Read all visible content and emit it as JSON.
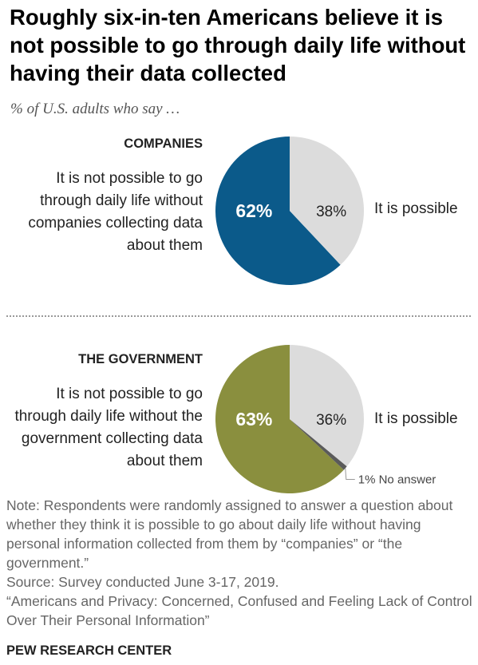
{
  "title": "Roughly six-in-ten Americans believe it is not possible to go through daily life without having their data collected",
  "subtitle": "% of U.S. adults who say …",
  "colors": {
    "companies_accent": "#0b5a8a",
    "government_accent": "#8a8f3e",
    "possible": "#dcdcdc",
    "no_answer": "#5a5a5a"
  },
  "chart_data": [
    {
      "type": "pie",
      "title": "COMPANIES",
      "slices": [
        {
          "label": "It is not possible to go through daily life without companies collecting data about them",
          "value": 62,
          "display": "62%"
        },
        {
          "label": "It is possible",
          "value": 38,
          "display": "38%"
        }
      ]
    },
    {
      "type": "pie",
      "title": "THE GOVERNMENT",
      "slices": [
        {
          "label": "It is not possible to go through daily life without the government collecting data about them",
          "value": 63,
          "display": "63%"
        },
        {
          "label": "It is possible",
          "value": 36,
          "display": "36%"
        },
        {
          "label": "No answer",
          "value": 1,
          "display": "1% No answer"
        }
      ]
    }
  ],
  "notes": {
    "note": "Note: Respondents were randomly assigned to answer a question about whether they think it is possible to go about daily life without having personal information collected from them by “companies” or “the government.”",
    "source": "Source: Survey conducted June 3-17, 2019.",
    "report": "“Americans and Privacy: Concerned, Confused and Feeling Lack of Control Over Their Personal Information”",
    "org": "PEW RESEARCH CENTER"
  }
}
